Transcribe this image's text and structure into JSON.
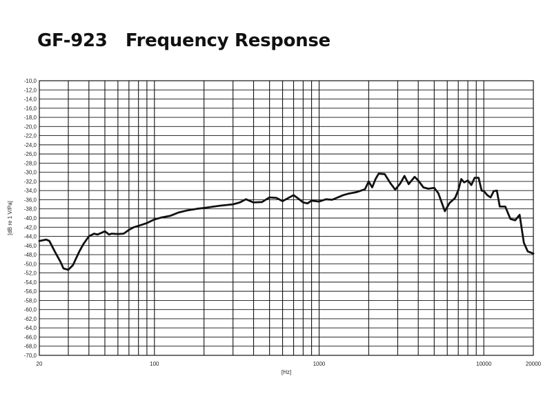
{
  "chart_data": {
    "type": "line",
    "title": "GF-923   Frequency Response",
    "xlabel": "[Hz]",
    "ylabel": "[dB re 1 V/Pa]",
    "xscale": "log",
    "xlim": [
      20,
      20000
    ],
    "ylim": [
      -70,
      -10
    ],
    "grid": true,
    "x_tick_labels": [
      {
        "value": 20,
        "label": "20"
      },
      {
        "value": 100,
        "label": "100"
      },
      {
        "value": 1000,
        "label": "1000"
      },
      {
        "value": 10000,
        "label": "10000"
      },
      {
        "value": 20000,
        "label": "20000"
      }
    ],
    "y_tick_labels": [
      "-10,0",
      "-12,0",
      "-14,0",
      "-16,0",
      "-18,0",
      "-20,0",
      "-22,0",
      "-24,0",
      "-26,0",
      "-28,0",
      "-30,0",
      "-32,0",
      "-34,0",
      "-36,0",
      "-38,0",
      "-40,0",
      "-42,0",
      "-44,0",
      "-46,0",
      "-48,0",
      "-50,0",
      "-52,0",
      "-54,0",
      "-56,0",
      "-58,0",
      "-60,0",
      "-62,0",
      "-64,0",
      "-66,0",
      "-68,0",
      "-70,0"
    ],
    "series": [
      {
        "color": "#111111",
        "x": [
          20,
          22,
          23,
          25,
          27,
          28,
          30,
          32,
          35,
          37,
          40,
          43,
          45,
          48,
          50,
          53,
          55,
          60,
          65,
          70,
          75,
          80,
          90,
          100,
          110,
          125,
          140,
          160,
          180,
          200,
          250,
          300,
          330,
          350,
          360,
          400,
          450,
          500,
          550,
          600,
          700,
          750,
          800,
          850,
          900,
          950,
          1000,
          1100,
          1200,
          1300,
          1400,
          1500,
          1600,
          1700,
          1800,
          1900,
          2000,
          2100,
          2200,
          2300,
          2500,
          2700,
          2900,
          3100,
          3300,
          3500,
          3800,
          4000,
          4300,
          4600,
          5000,
          5300,
          5800,
          6200,
          6700,
          7000,
          7300,
          7600,
          8000,
          8400,
          8800,
          9300,
          9700,
          10000,
          10500,
          11000,
          11500,
          12000,
          12500,
          13000,
          13500,
          14500,
          15500,
          16500,
          17500,
          18500,
          19200,
          20000
        ],
        "y": [
          -45.0,
          -44.7,
          -45.0,
          -47.5,
          -49.7,
          -51.0,
          -51.3,
          -50.3,
          -47.3,
          -45.7,
          -44.0,
          -43.4,
          -43.6,
          -43.2,
          -42.9,
          -43.6,
          -43.4,
          -43.5,
          -43.4,
          -42.6,
          -42.0,
          -41.7,
          -41.1,
          -40.3,
          -39.9,
          -39.5,
          -38.8,
          -38.3,
          -38.0,
          -37.8,
          -37.3,
          -37.0,
          -36.6,
          -36.1,
          -35.9,
          -36.6,
          -36.5,
          -35.5,
          -35.6,
          -36.3,
          -35.0,
          -35.8,
          -36.6,
          -36.8,
          -36.2,
          -36.3,
          -36.4,
          -35.9,
          -36.0,
          -35.5,
          -35.0,
          -34.7,
          -34.5,
          -34.3,
          -34.0,
          -33.7,
          -32.0,
          -33.3,
          -31.5,
          -30.3,
          -30.4,
          -32.3,
          -33.8,
          -32.5,
          -30.8,
          -32.6,
          -31.0,
          -31.8,
          -33.3,
          -33.6,
          -33.4,
          -34.6,
          -38.5,
          -36.7,
          -35.6,
          -33.9,
          -31.5,
          -32.2,
          -31.8,
          -32.8,
          -31.2,
          -31.2,
          -34.0,
          -34.1,
          -35.0,
          -35.5,
          -34.1,
          -34.0,
          -37.5,
          -37.5,
          -37.5,
          -40.2,
          -40.5,
          -39.3,
          -45.4,
          -47.3,
          -47.5,
          -47.8
        ]
      }
    ]
  }
}
